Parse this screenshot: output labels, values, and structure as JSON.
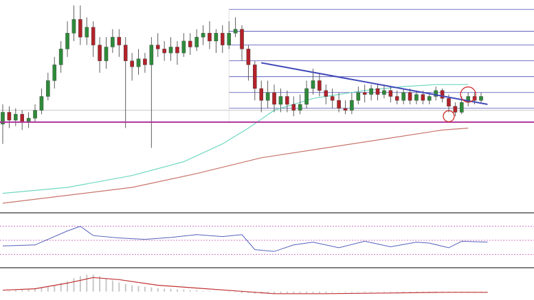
{
  "chart_data": {
    "type": "candlestick",
    "title": "",
    "xlabel": "",
    "ylabel": "",
    "grid": false,
    "legend": "none",
    "colors": {
      "bull": "#2e8b3a",
      "bear": "#b2222a",
      "ma_short": "#6ed8c0",
      "ma_long": "#c8736a",
      "trendline": "#3f48b8",
      "support": "#b0309a",
      "fib": "#4a4ab4",
      "highlight_circle": "#d02a2a",
      "rsi": "#5460b8",
      "rsi_levels": "#c04ab0",
      "macd_up": "#c8c8c8",
      "macd_signal": "#c03030",
      "panel_border": "#555555"
    },
    "main_panel": {
      "ylim": [
        0,
        100
      ],
      "candles": [
        {
          "o": 40,
          "c": 46,
          "h": 50,
          "l": 30
        },
        {
          "o": 46,
          "c": 42,
          "h": 49,
          "l": 38
        },
        {
          "o": 42,
          "c": 45,
          "h": 48,
          "l": 39
        },
        {
          "o": 45,
          "c": 41,
          "h": 47,
          "l": 37
        },
        {
          "o": 41,
          "c": 43,
          "h": 46,
          "l": 38
        },
        {
          "o": 43,
          "c": 47,
          "h": 50,
          "l": 41
        },
        {
          "o": 47,
          "c": 54,
          "h": 58,
          "l": 45
        },
        {
          "o": 54,
          "c": 62,
          "h": 66,
          "l": 52
        },
        {
          "o": 62,
          "c": 70,
          "h": 74,
          "l": 58
        },
        {
          "o": 70,
          "c": 78,
          "h": 82,
          "l": 66
        },
        {
          "o": 78,
          "c": 86,
          "h": 92,
          "l": 74
        },
        {
          "o": 86,
          "c": 93,
          "h": 100,
          "l": 82
        },
        {
          "o": 93,
          "c": 84,
          "h": 100,
          "l": 80
        },
        {
          "o": 84,
          "c": 89,
          "h": 94,
          "l": 80
        },
        {
          "o": 89,
          "c": 80,
          "h": 92,
          "l": 74
        },
        {
          "o": 80,
          "c": 72,
          "h": 84,
          "l": 66
        },
        {
          "o": 72,
          "c": 79,
          "h": 84,
          "l": 68
        },
        {
          "o": 79,
          "c": 84,
          "h": 88,
          "l": 76
        },
        {
          "o": 84,
          "c": 80,
          "h": 88,
          "l": 74
        },
        {
          "o": 80,
          "c": 72,
          "h": 84,
          "l": 38
        },
        {
          "o": 72,
          "c": 69,
          "h": 76,
          "l": 62
        },
        {
          "o": 69,
          "c": 73,
          "h": 78,
          "l": 65
        },
        {
          "o": 73,
          "c": 70,
          "h": 76,
          "l": 66
        },
        {
          "o": 70,
          "c": 80,
          "h": 84,
          "l": 28
        },
        {
          "o": 80,
          "c": 78,
          "h": 86,
          "l": 74
        },
        {
          "o": 78,
          "c": 76,
          "h": 82,
          "l": 72
        },
        {
          "o": 76,
          "c": 79,
          "h": 84,
          "l": 72
        },
        {
          "o": 79,
          "c": 76,
          "h": 82,
          "l": 70
        },
        {
          "o": 76,
          "c": 82,
          "h": 86,
          "l": 74
        },
        {
          "o": 82,
          "c": 79,
          "h": 86,
          "l": 75
        },
        {
          "o": 79,
          "c": 84,
          "h": 88,
          "l": 77
        },
        {
          "o": 84,
          "c": 86,
          "h": 90,
          "l": 80
        },
        {
          "o": 86,
          "c": 82,
          "h": 92,
          "l": 78
        },
        {
          "o": 82,
          "c": 86,
          "h": 88,
          "l": 76
        },
        {
          "o": 86,
          "c": 80,
          "h": 90,
          "l": 76
        },
        {
          "o": 80,
          "c": 86,
          "h": 92,
          "l": 78
        },
        {
          "o": 86,
          "c": 88,
          "h": 94,
          "l": 84
        },
        {
          "o": 88,
          "c": 78,
          "h": 90,
          "l": 72
        },
        {
          "o": 78,
          "c": 70,
          "h": 80,
          "l": 62
        },
        {
          "o": 70,
          "c": 58,
          "h": 72,
          "l": 52
        },
        {
          "o": 58,
          "c": 52,
          "h": 62,
          "l": 46
        },
        {
          "o": 52,
          "c": 56,
          "h": 62,
          "l": 48
        },
        {
          "o": 56,
          "c": 50,
          "h": 60,
          "l": 46
        },
        {
          "o": 50,
          "c": 54,
          "h": 58,
          "l": 46
        },
        {
          "o": 54,
          "c": 50,
          "h": 57,
          "l": 46
        },
        {
          "o": 50,
          "c": 47,
          "h": 54,
          "l": 44
        },
        {
          "o": 47,
          "c": 50,
          "h": 55,
          "l": 45
        },
        {
          "o": 50,
          "c": 58,
          "h": 62,
          "l": 48
        },
        {
          "o": 58,
          "c": 62,
          "h": 68,
          "l": 55
        },
        {
          "o": 62,
          "c": 57,
          "h": 66,
          "l": 54
        },
        {
          "o": 57,
          "c": 54,
          "h": 60,
          "l": 50
        },
        {
          "o": 54,
          "c": 52,
          "h": 58,
          "l": 48
        },
        {
          "o": 52,
          "c": 48,
          "h": 56,
          "l": 46
        },
        {
          "o": 48,
          "c": 47,
          "h": 52,
          "l": 45
        },
        {
          "o": 47,
          "c": 52,
          "h": 56,
          "l": 45
        },
        {
          "o": 52,
          "c": 56,
          "h": 59,
          "l": 50
        },
        {
          "o": 56,
          "c": 55,
          "h": 60,
          "l": 51
        },
        {
          "o": 55,
          "c": 58,
          "h": 60,
          "l": 52
        },
        {
          "o": 58,
          "c": 55,
          "h": 60,
          "l": 52
        },
        {
          "o": 55,
          "c": 57,
          "h": 60,
          "l": 53
        },
        {
          "o": 57,
          "c": 54,
          "h": 59,
          "l": 51
        },
        {
          "o": 54,
          "c": 52,
          "h": 57,
          "l": 50
        },
        {
          "o": 52,
          "c": 56,
          "h": 58,
          "l": 50
        },
        {
          "o": 56,
          "c": 52,
          "h": 58,
          "l": 50
        },
        {
          "o": 52,
          "c": 55,
          "h": 57,
          "l": 50
        },
        {
          "o": 55,
          "c": 52,
          "h": 57,
          "l": 50
        },
        {
          "o": 52,
          "c": 54,
          "h": 56,
          "l": 50
        },
        {
          "o": 54,
          "c": 57,
          "h": 59,
          "l": 52
        },
        {
          "o": 57,
          "c": 53,
          "h": 58,
          "l": 51
        },
        {
          "o": 53,
          "c": 49,
          "h": 55,
          "l": 46
        },
        {
          "o": 49,
          "c": 46,
          "h": 51,
          "l": 44
        },
        {
          "o": 46,
          "c": 51,
          "h": 54,
          "l": 45
        },
        {
          "o": 51,
          "c": 54,
          "h": 56,
          "l": 49
        },
        {
          "o": 54,
          "c": 52,
          "h": 56,
          "l": 50
        },
        {
          "o": 52,
          "c": 54,
          "h": 56,
          "l": 51
        }
      ],
      "ma_short": [
        {
          "i": 0,
          "v": 5
        },
        {
          "i": 10,
          "v": 8
        },
        {
          "i": 20,
          "v": 14
        },
        {
          "i": 28,
          "v": 21
        },
        {
          "i": 34,
          "v": 30
        },
        {
          "i": 38,
          "v": 38
        },
        {
          "i": 42,
          "v": 47
        },
        {
          "i": 48,
          "v": 53
        },
        {
          "i": 56,
          "v": 57
        },
        {
          "i": 62,
          "v": 59
        },
        {
          "i": 67,
          "v": 60
        },
        {
          "i": 72,
          "v": 60
        }
      ],
      "ma_long": [
        {
          "i": 0,
          "v": 0
        },
        {
          "i": 10,
          "v": 4
        },
        {
          "i": 20,
          "v": 8
        },
        {
          "i": 30,
          "v": 15
        },
        {
          "i": 40,
          "v": 23
        },
        {
          "i": 50,
          "v": 28
        },
        {
          "i": 60,
          "v": 33
        },
        {
          "i": 68,
          "v": 37
        },
        {
          "i": 72,
          "v": 38
        }
      ],
      "trendline": [
        {
          "i": 40,
          "v": 71
        },
        {
          "i": 75,
          "v": 50
        }
      ],
      "support_level": 41,
      "reference_level": 47,
      "fib_start_index": 35,
      "fib_levels": [
        98,
        87,
        80,
        72,
        64,
        56,
        48,
        41
      ],
      "highlight_markers": [
        {
          "i": 72,
          "v": 55
        },
        {
          "i": 69,
          "v": 44
        }
      ]
    },
    "rsi_panel": {
      "ylim": [
        0,
        100
      ],
      "levels": [
        80,
        50,
        20
      ],
      "values": [
        {
          "i": 0,
          "v": 38
        },
        {
          "i": 5,
          "v": 40
        },
        {
          "i": 10,
          "v": 70
        },
        {
          "i": 12,
          "v": 80
        },
        {
          "i": 14,
          "v": 60
        },
        {
          "i": 18,
          "v": 55
        },
        {
          "i": 22,
          "v": 52
        },
        {
          "i": 26,
          "v": 56
        },
        {
          "i": 30,
          "v": 62
        },
        {
          "i": 34,
          "v": 58
        },
        {
          "i": 37,
          "v": 62
        },
        {
          "i": 39,
          "v": 30
        },
        {
          "i": 42,
          "v": 26
        },
        {
          "i": 45,
          "v": 40
        },
        {
          "i": 48,
          "v": 46
        },
        {
          "i": 52,
          "v": 34
        },
        {
          "i": 56,
          "v": 48
        },
        {
          "i": 60,
          "v": 36
        },
        {
          "i": 64,
          "v": 46
        },
        {
          "i": 66,
          "v": 44
        },
        {
          "i": 69,
          "v": 34
        },
        {
          "i": 71,
          "v": 48
        },
        {
          "i": 75,
          "v": 46
        }
      ]
    },
    "macd_panel": {
      "ylim": [
        -10,
        30
      ],
      "histogram": [
        0,
        1,
        2,
        3,
        4,
        5,
        6,
        7,
        9,
        12,
        15,
        19,
        22,
        24,
        24,
        22,
        19,
        16,
        13,
        11,
        9,
        8,
        7,
        6,
        5,
        4,
        4,
        3,
        3,
        2,
        2,
        1,
        1,
        0,
        0,
        -1,
        -1,
        -2,
        -2,
        -3,
        -3,
        -3,
        -3,
        -2,
        -2,
        -2,
        -2,
        -2,
        -2,
        -2,
        -2,
        -1,
        -1,
        -1,
        -1,
        -1,
        -1,
        -1,
        -1,
        -1,
        -1,
        -1,
        -1,
        -1,
        -1,
        -1,
        -1,
        -1,
        -1,
        -1,
        -1,
        -1,
        -1,
        -1,
        -1,
        -1
      ],
      "signal": [
        {
          "i": 0,
          "v": 2
        },
        {
          "i": 5,
          "v": 4
        },
        {
          "i": 10,
          "v": 12
        },
        {
          "i": 14,
          "v": 20
        },
        {
          "i": 18,
          "v": 17
        },
        {
          "i": 24,
          "v": 9
        },
        {
          "i": 30,
          "v": 5
        },
        {
          "i": 36,
          "v": 1
        },
        {
          "i": 42,
          "v": -3
        },
        {
          "i": 50,
          "v": -3
        },
        {
          "i": 60,
          "v": -2
        },
        {
          "i": 68,
          "v": -1
        },
        {
          "i": 75,
          "v": -1
        }
      ]
    }
  }
}
